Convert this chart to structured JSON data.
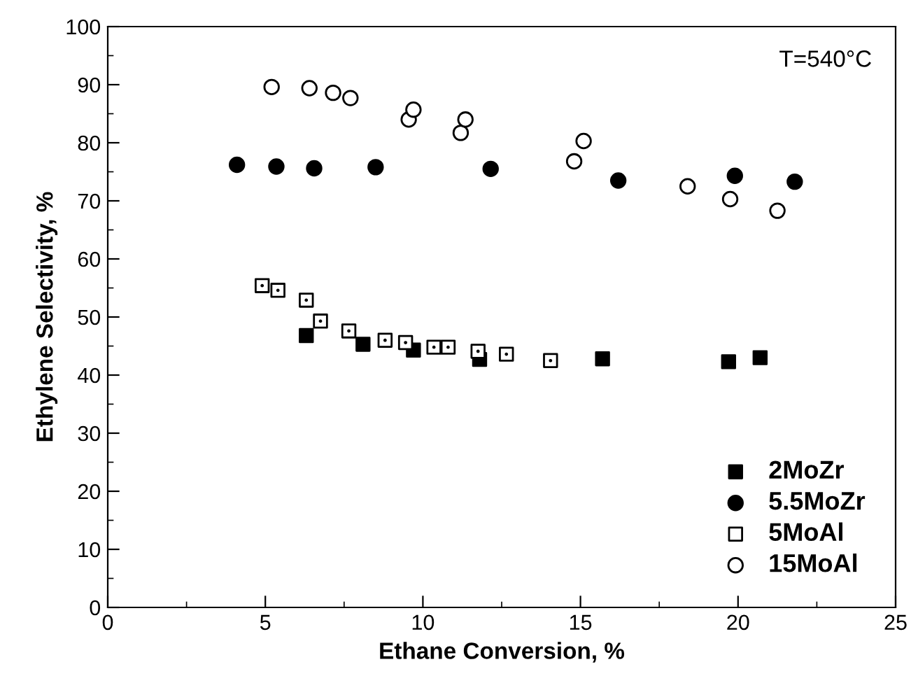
{
  "chart_data": {
    "type": "scatter",
    "xlabel": "Ethane Conversion, %",
    "ylabel": "Ethylene Selectivity, %",
    "annotations": [
      "T=540°C"
    ],
    "xlim": [
      0,
      25
    ],
    "xticks": [
      0,
      5,
      10,
      15,
      20,
      25
    ],
    "ylim": [
      0,
      100
    ],
    "yticks": [
      0,
      10,
      20,
      30,
      40,
      50,
      60,
      70,
      80,
      90,
      100
    ],
    "grid": false,
    "legend": "bottom right",
    "series": [
      {
        "name": "2MoZr",
        "color": "#000000",
        "marker": "square",
        "x": [
          6.3,
          8.1,
          9.7,
          11.8,
          15.7,
          19.7,
          20.7
        ],
        "values": [
          46.8,
          45.3,
          44.3,
          42.7,
          42.8,
          42.3,
          43.0
        ]
      },
      {
        "name": "5.5MoZr",
        "color": "#000000",
        "marker": "circle",
        "x": [
          4.1,
          5.35,
          6.55,
          8.5,
          12.15,
          16.2,
          19.9,
          21.8
        ],
        "values": [
          76.2,
          75.9,
          75.6,
          75.8,
          75.5,
          73.5,
          74.3,
          73.3
        ]
      },
      {
        "name": "5MoAl",
        "color": "#ffffff",
        "marker": "square",
        "x": [
          4.9,
          5.4,
          6.3,
          6.75,
          7.65,
          8.8,
          9.45,
          10.35,
          10.8,
          11.75,
          12.65,
          14.05
        ],
        "values": [
          55.4,
          54.6,
          52.9,
          49.3,
          47.6,
          46.0,
          45.6,
          44.8,
          44.8,
          44.1,
          43.6,
          42.5
        ]
      },
      {
        "name": "15MoAl",
        "color": "#ffffff",
        "marker": "circle",
        "x": [
          5.2,
          6.4,
          7.15,
          7.7,
          9.55,
          9.7,
          11.2,
          11.35,
          14.8,
          15.1,
          18.4,
          19.75,
          21.25
        ],
        "values": [
          89.6,
          89.4,
          88.6,
          87.7,
          84.0,
          85.7,
          81.7,
          84.0,
          76.8,
          80.3,
          72.5,
          70.3,
          68.3
        ]
      }
    ]
  }
}
